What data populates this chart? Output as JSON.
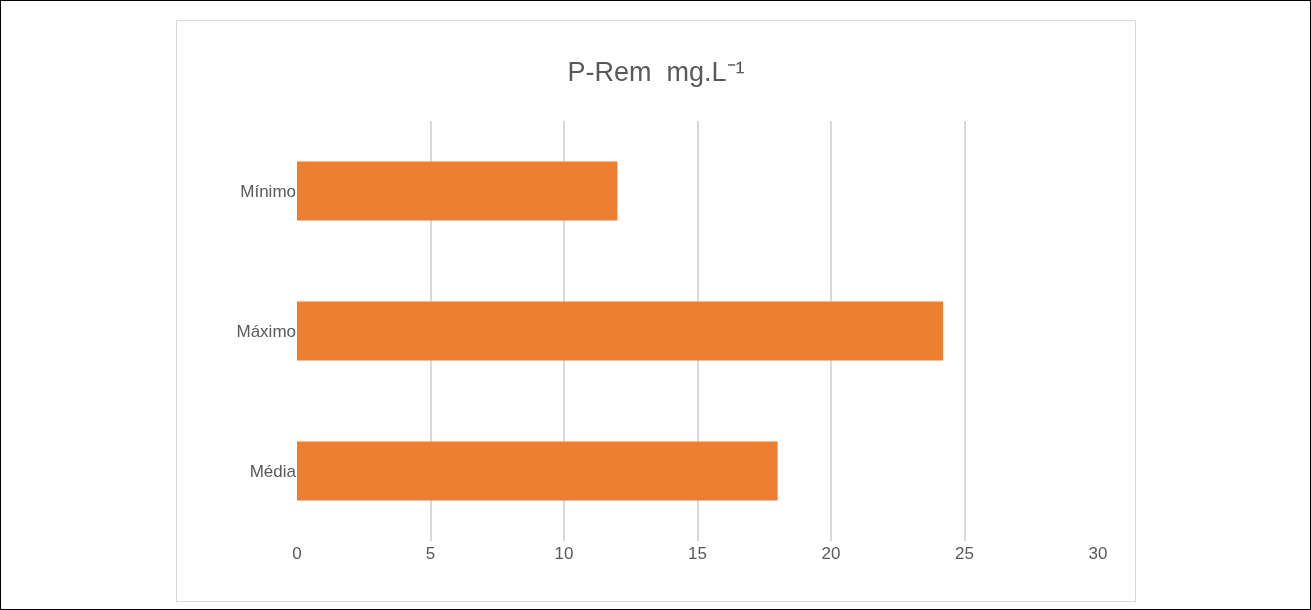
{
  "chart_data": {
    "type": "bar",
    "orientation": "horizontal",
    "title": "P-Rem  mg.L⁻¹",
    "categories": [
      "Mínimo",
      "Máximo",
      "Média"
    ],
    "values": [
      12,
      24.2,
      18
    ],
    "color": "#ed7d31",
    "xlim": [
      0,
      30
    ],
    "xticks": [
      0,
      5,
      10,
      15,
      20,
      25,
      30
    ],
    "grid": "x"
  }
}
